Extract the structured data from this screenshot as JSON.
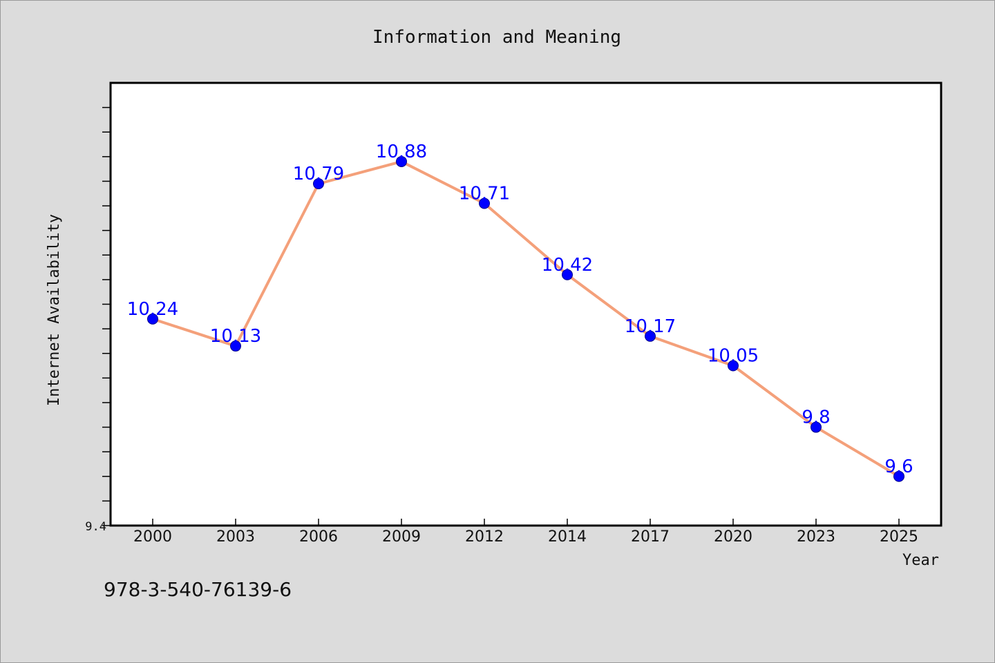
{
  "chart_data": {
    "type": "line",
    "title": "Information and Meaning",
    "xlabel": "Year",
    "ylabel": "Internet Availability",
    "categories": [
      "2000",
      "2003",
      "2006",
      "2009",
      "2012",
      "2014",
      "2017",
      "2020",
      "2023",
      "2025"
    ],
    "series": [
      {
        "values": [
          10.24,
          10.13,
          10.79,
          10.88,
          10.71,
          10.42,
          10.17,
          10.05,
          9.8,
          9.6
        ],
        "data_labels": [
          "10.24",
          "10.13",
          "10.79",
          "10.88",
          "10.71",
          "10.42",
          "10.17",
          "10.05",
          "9.8",
          "9.6"
        ]
      }
    ],
    "ylim": [
      9.4,
      11.2
    ],
    "y_tick_labels": [
      "9.4"
    ],
    "grid": false,
    "colors": {
      "line": "#f4a07a",
      "marker": "#0000ff",
      "data_label": "#0000ff",
      "plot_background": "#ffffff",
      "figure_background": "#dcdcdc"
    }
  },
  "footer": {
    "isbn": "978-3-540-76139-6"
  }
}
